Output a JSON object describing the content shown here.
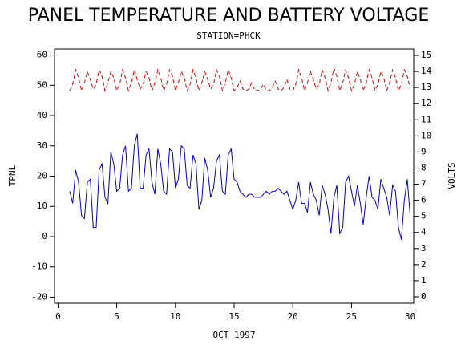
{
  "chart_data": {
    "type": "line",
    "title": "PANEL TEMPERATURE AND BATTERY VOLTAGE",
    "subtitle": "STATION=PHCK",
    "x_label": "OCT 1997",
    "y_label": "TPNL",
    "y2_label": "VOLTS",
    "xlim": [
      -0.3,
      30.3
    ],
    "xticks": [
      0,
      5,
      10,
      15,
      20,
      25,
      30
    ],
    "ylim": [
      -22,
      62
    ],
    "yticks": [
      -20,
      -10,
      0,
      10,
      20,
      30,
      40,
      50,
      60
    ],
    "y2lim": [
      -0.4,
      15.4
    ],
    "y2ticks": [
      0,
      1,
      2,
      3,
      4,
      5,
      6,
      7,
      8,
      9,
      10,
      11,
      12,
      13,
      14,
      15
    ],
    "x": [
      1,
      1.25,
      1.5,
      1.75,
      2,
      2.25,
      2.5,
      2.75,
      3,
      3.25,
      3.5,
      3.75,
      4,
      4.25,
      4.5,
      4.75,
      5,
      5.25,
      5.5,
      5.75,
      6,
      6.25,
      6.5,
      6.75,
      7,
      7.25,
      7.5,
      7.75,
      8,
      8.25,
      8.5,
      8.75,
      9,
      9.25,
      9.5,
      9.75,
      10,
      10.25,
      10.5,
      10.75,
      11,
      11.25,
      11.5,
      11.75,
      12,
      12.25,
      12.5,
      12.75,
      13,
      13.25,
      13.5,
      13.75,
      14,
      14.25,
      14.5,
      14.75,
      15,
      15.25,
      15.5,
      15.75,
      16,
      16.25,
      16.5,
      16.75,
      17,
      17.25,
      17.5,
      17.75,
      18,
      18.25,
      18.5,
      18.75,
      19,
      19.25,
      19.5,
      19.75,
      20,
      20.25,
      20.5,
      20.75,
      21,
      21.25,
      21.5,
      21.75,
      22,
      22.25,
      22.5,
      22.75,
      23,
      23.25,
      23.5,
      23.75,
      24,
      24.25,
      24.5,
      24.75,
      25,
      25.25,
      25.5,
      25.75,
      26,
      26.25,
      26.5,
      26.75,
      27,
      27.25,
      27.5,
      27.75,
      28,
      28.25,
      28.5,
      28.75,
      29,
      29.25,
      29.5,
      29.75,
      30
    ],
    "series": [
      {
        "name": "TPNL",
        "color": "#0000cc",
        "axis": "y",
        "values": [
          15,
          11,
          22,
          18,
          7,
          6,
          18,
          19,
          3,
          3,
          22,
          24,
          13,
          11,
          28,
          24,
          15,
          16,
          27,
          30,
          15,
          16,
          30,
          34,
          16,
          16,
          27,
          29,
          18,
          14,
          29,
          24,
          15,
          14,
          29,
          28,
          16,
          19,
          30,
          29,
          17,
          16,
          27,
          24,
          9,
          12,
          26,
          22,
          13,
          16,
          25,
          27,
          15,
          14,
          27,
          29,
          19,
          18,
          15,
          14,
          13,
          14,
          14,
          13,
          13,
          13,
          14,
          15,
          14,
          15,
          15,
          16,
          15,
          14,
          15,
          12,
          9,
          12,
          18,
          11,
          11,
          8,
          18,
          14,
          12,
          7,
          17,
          14,
          9,
          1,
          13,
          17,
          1,
          3,
          18,
          20,
          15,
          10,
          17,
          11,
          4,
          13,
          20,
          13,
          12,
          9,
          19,
          16,
          13,
          7,
          17,
          15,
          3,
          -1,
          12,
          19,
          7
        ]
      },
      {
        "name": "VOLTS",
        "color": "#dd0000",
        "axis": "y2",
        "values": [
          12.8,
          13.2,
          14.1,
          13.6,
          12.8,
          13.3,
          14.0,
          13.5,
          12.9,
          13.2,
          14.1,
          13.7,
          12.8,
          13.3,
          14.0,
          13.6,
          12.8,
          13.2,
          14.1,
          13.6,
          12.8,
          13.3,
          14.1,
          13.5,
          12.9,
          13.2,
          14.0,
          13.6,
          12.8,
          13.3,
          14.1,
          13.6,
          12.8,
          13.2,
          14.1,
          13.7,
          12.8,
          13.3,
          14.0,
          13.6,
          12.8,
          13.2,
          14.1,
          13.6,
          12.8,
          13.3,
          14.0,
          13.5,
          12.9,
          13.2,
          14.1,
          13.7,
          12.8,
          13.3,
          14.1,
          13.6,
          12.8,
          13.0,
          13.4,
          12.9,
          12.8,
          12.9,
          13.3,
          12.8,
          12.8,
          12.9,
          13.2,
          12.8,
          12.8,
          13.0,
          13.4,
          12.9,
          12.8,
          13.0,
          13.5,
          12.9,
          12.8,
          13.2,
          14.1,
          13.6,
          12.8,
          13.3,
          14.0,
          13.5,
          12.9,
          13.2,
          14.1,
          13.6,
          12.8,
          13.3,
          14.2,
          13.7,
          12.8,
          13.3,
          14.1,
          13.6,
          12.8,
          13.2,
          14.0,
          13.5,
          12.8,
          13.3,
          14.1,
          13.6,
          12.8,
          13.2,
          14.0,
          13.6,
          12.8,
          13.3,
          14.1,
          13.6,
          12.8,
          13.2,
          14.1,
          13.7,
          12.9
        ]
      }
    ]
  }
}
